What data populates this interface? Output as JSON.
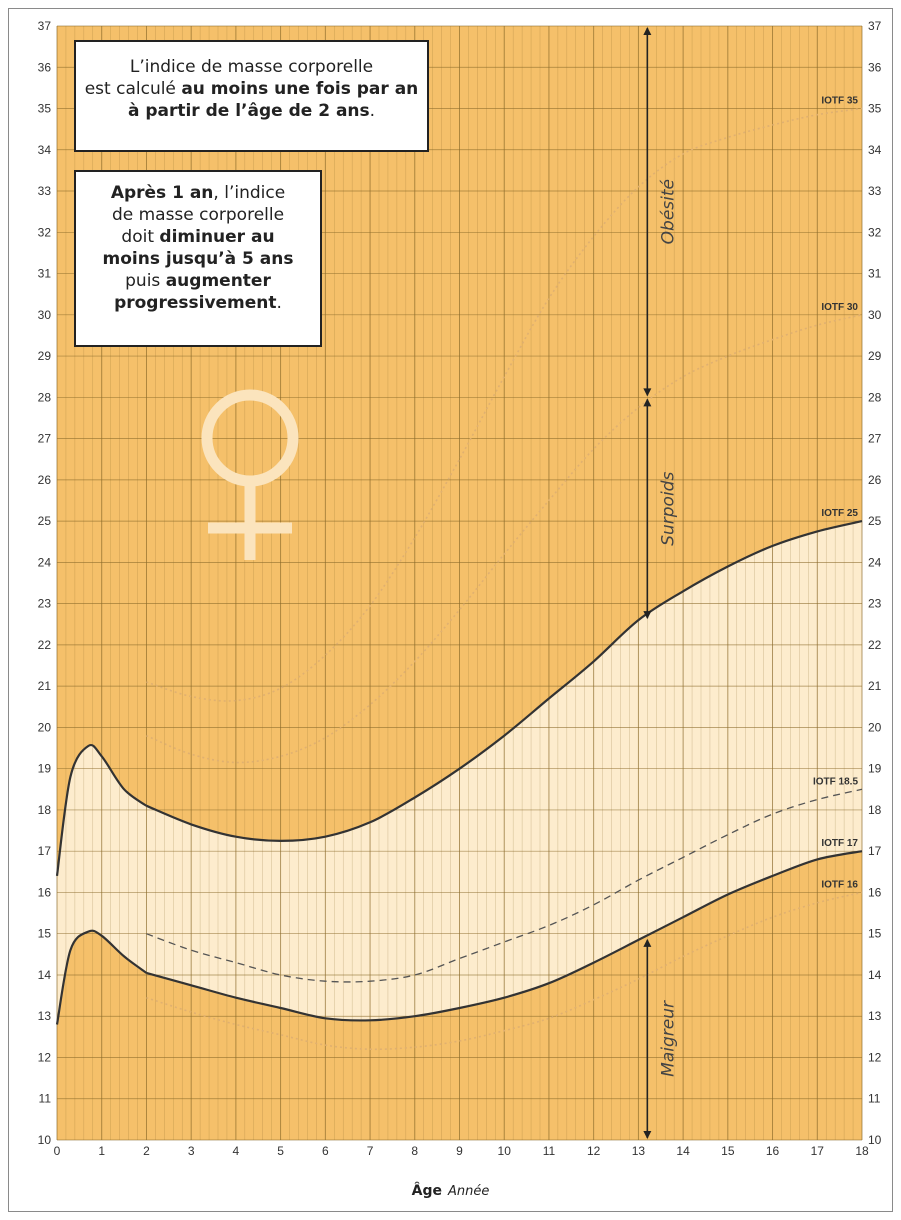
{
  "info_box_1": {
    "line1": "L’indice de masse corporelle",
    "line2_pre": "est calculé ",
    "line2_bold": "au moins une fois par an",
    "line3_bold": "à partir de l’âge de 2 ans",
    "line3_post": "."
  },
  "info_box_2": {
    "line1_bold": "Après 1 an",
    "line1_post": ", l’indice",
    "line2": "de masse corporelle",
    "line3_pre": "doit ",
    "line3_bold": "diminuer au",
    "line4_bold": "moins jusqu’à 5 ans",
    "line5_pre": "puis ",
    "line5_bold": "augmenter",
    "line6_bold": "progressivement",
    "line6_post": "."
  },
  "x_caption": {
    "label": "Âge",
    "unit": "Année"
  },
  "colors": {
    "background": "#f5c06a",
    "band_fill": "#fdeccd",
    "grid": "#8a6a2a",
    "curve": "#333333",
    "dotted": "#e0b070",
    "dashed": "#555555",
    "symbol": "#fbe4bd"
  },
  "icons": {
    "female_symbol": "venus-icon"
  },
  "chart_data": {
    "type": "line",
    "xlim": [
      0,
      18
    ],
    "ylim": [
      10,
      37
    ],
    "x_ticks": [
      0,
      1,
      2,
      3,
      4,
      5,
      6,
      7,
      8,
      9,
      10,
      11,
      12,
      13,
      14,
      15,
      16,
      17,
      18
    ],
    "y_ticks": [
      10,
      11,
      12,
      13,
      14,
      15,
      16,
      17,
      18,
      19,
      20,
      21,
      22,
      23,
      24,
      25,
      26,
      27,
      28,
      29,
      30,
      31,
      32,
      33,
      34,
      35,
      36,
      37
    ],
    "grid": true,
    "upper_band_curve": {
      "x": [
        0,
        0.3,
        0.7,
        1,
        1.5,
        2,
        3,
        4,
        5,
        6,
        7,
        8,
        9,
        10,
        11,
        12,
        13,
        14,
        15,
        16,
        17,
        18
      ],
      "y": [
        16.4,
        18.8,
        19.55,
        19.3,
        18.5,
        18.1,
        17.65,
        17.35,
        17.25,
        17.35,
        17.7,
        18.3,
        19.0,
        19.8,
        20.7,
        21.6,
        22.6,
        23.3,
        23.9,
        24.4,
        24.75,
        25.0
      ]
    },
    "lower_band_curve": {
      "x": [
        0,
        0.3,
        0.7,
        1,
        1.5,
        2,
        3,
        4,
        5,
        6,
        7,
        8,
        9,
        10,
        11,
        12,
        13,
        14,
        15,
        16,
        17,
        18
      ],
      "y": [
        12.8,
        14.6,
        15.05,
        14.95,
        14.45,
        14.05,
        13.75,
        13.45,
        13.2,
        12.95,
        12.9,
        13.0,
        13.2,
        13.45,
        13.8,
        14.3,
        14.85,
        15.4,
        15.95,
        16.4,
        16.8,
        17.0
      ]
    },
    "series": [
      {
        "name": "IOTF 35",
        "style": "dotted",
        "x": [
          2,
          3,
          4,
          5,
          6,
          7,
          8,
          9,
          10,
          11,
          12,
          13,
          14,
          15,
          16,
          17,
          18
        ],
        "y": [
          21.1,
          20.75,
          20.65,
          20.95,
          21.75,
          22.95,
          24.6,
          26.5,
          28.5,
          30.4,
          31.9,
          33.1,
          33.9,
          34.3,
          34.6,
          34.85,
          35.0
        ]
      },
      {
        "name": "IOTF 30",
        "style": "dotted",
        "x": [
          2,
          3,
          4,
          5,
          6,
          7,
          8,
          9,
          10,
          11,
          12,
          13,
          14,
          15,
          16,
          17,
          18
        ],
        "y": [
          19.8,
          19.35,
          19.15,
          19.3,
          19.75,
          20.55,
          21.6,
          22.85,
          24.2,
          25.5,
          26.75,
          27.75,
          28.5,
          29.0,
          29.4,
          29.75,
          30.0
        ]
      },
      {
        "name": "IOTF 25",
        "style": "solid",
        "x": [
          2,
          3,
          4,
          5,
          6,
          7,
          8,
          9,
          10,
          11,
          12,
          13,
          14,
          15,
          16,
          17,
          18
        ],
        "y": [
          18.1,
          17.65,
          17.35,
          17.25,
          17.35,
          17.7,
          18.3,
          19.0,
          19.8,
          20.7,
          21.6,
          22.6,
          23.3,
          23.9,
          24.4,
          24.75,
          25.0
        ]
      },
      {
        "name": "IOTF 18.5",
        "style": "dashed",
        "x": [
          2,
          3,
          4,
          5,
          6,
          7,
          8,
          9,
          10,
          11,
          12,
          13,
          14,
          15,
          16,
          17,
          18
        ],
        "y": [
          15.0,
          14.6,
          14.3,
          14.0,
          13.85,
          13.85,
          14.0,
          14.4,
          14.8,
          15.2,
          15.7,
          16.3,
          16.85,
          17.4,
          17.9,
          18.25,
          18.5
        ]
      },
      {
        "name": "IOTF 17",
        "style": "solid",
        "x": [
          2,
          3,
          4,
          5,
          6,
          7,
          8,
          9,
          10,
          11,
          12,
          13,
          14,
          15,
          16,
          17,
          18
        ],
        "y": [
          14.05,
          13.75,
          13.45,
          13.2,
          12.95,
          12.9,
          13.0,
          13.2,
          13.45,
          13.8,
          14.3,
          14.85,
          15.4,
          15.95,
          16.4,
          16.8,
          17.0
        ]
      },
      {
        "name": "IOTF 16",
        "style": "dotted",
        "x": [
          2,
          3,
          4,
          5,
          6,
          7,
          8,
          9,
          10,
          11,
          12,
          13,
          14,
          15,
          16,
          17,
          18
        ],
        "y": [
          13.45,
          13.1,
          12.8,
          12.55,
          12.3,
          12.2,
          12.25,
          12.4,
          12.65,
          12.95,
          13.4,
          13.9,
          14.45,
          14.95,
          15.4,
          15.75,
          16.0
        ]
      }
    ],
    "annotations": [
      {
        "text": "Obésité",
        "x": 13.2,
        "y_from": 28.0,
        "y_to": 37.0
      },
      {
        "text": "Surpoids",
        "x": 13.2,
        "y_from": 22.6,
        "y_to": 28.0
      },
      {
        "text": "Maigreur",
        "x": 13.2,
        "y_from": 10.0,
        "y_to": 14.9
      }
    ]
  }
}
